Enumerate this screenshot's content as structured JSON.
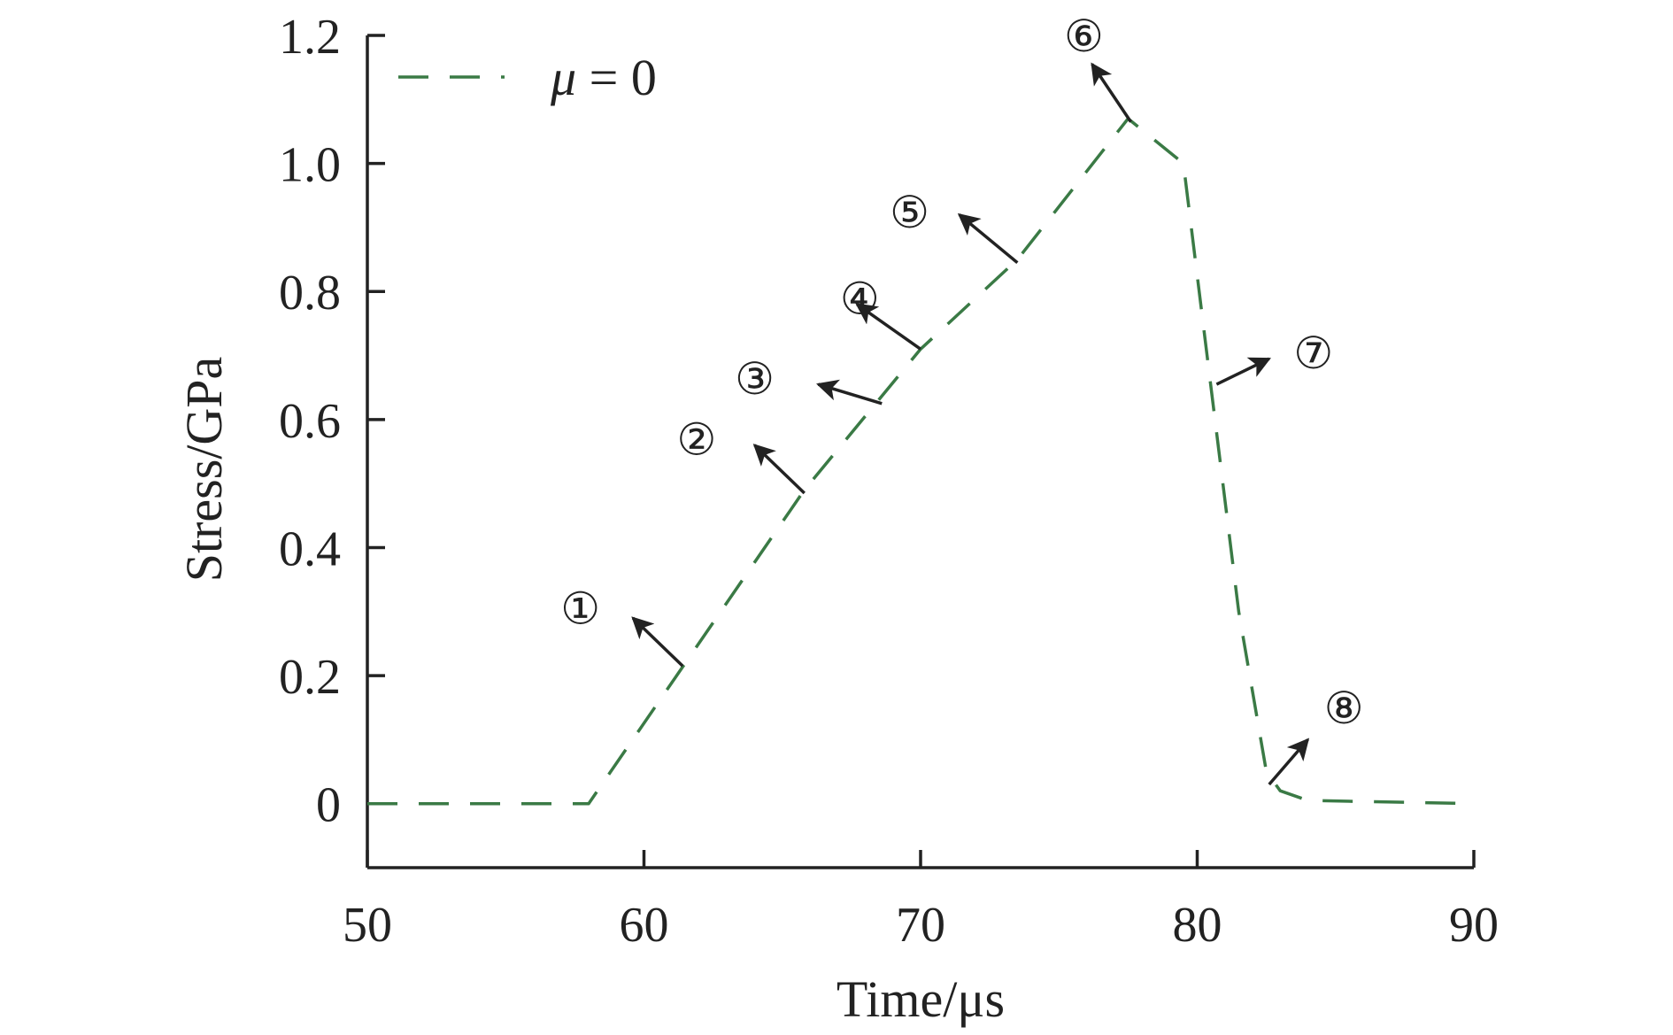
{
  "chart_data": {
    "type": "line",
    "title": "",
    "xlabel": "Time/μs",
    "ylabel": "Stress/GPa",
    "xlim": [
      50,
      90
    ],
    "ylim": [
      -0.1,
      1.2
    ],
    "xticks": [
      50,
      60,
      70,
      80,
      90
    ],
    "xtick_labels": [
      "50",
      "60",
      "70",
      "80",
      "90"
    ],
    "yticks": [
      0,
      0.2,
      0.4,
      0.6,
      0.8,
      1.0,
      1.2
    ],
    "ytick_labels": [
      "0",
      "0.2",
      "0.4",
      "0.6",
      "0.8",
      "1.0",
      "1.2"
    ],
    "grid": false,
    "legend_position": "top-left",
    "series": [
      {
        "name_prefix": "μ",
        "name_suffix": " = 0",
        "color": "#3a7a45",
        "line_style": "dashed",
        "x": [
          50,
          58,
          61.5,
          65.8,
          70,
          73.5,
          77.5,
          79.5,
          80.5,
          81.5,
          82.5,
          83,
          84,
          90
        ],
        "y": [
          0,
          0,
          0.22,
          0.49,
          0.71,
          0.85,
          1.07,
          1.0,
          0.65,
          0.3,
          0.05,
          0.02,
          0.005,
          0
        ]
      }
    ],
    "annotations": [
      {
        "label": "①",
        "text_x": 57.7,
        "text_y": 0.306,
        "tail_x": 61.4,
        "tail_y": 0.215,
        "head_x": 59.6,
        "head_y": 0.29
      },
      {
        "label": "②",
        "text_x": 61.9,
        "text_y": 0.57,
        "tail_x": 65.8,
        "tail_y": 0.485,
        "head_x": 64.0,
        "head_y": 0.56
      },
      {
        "label": "③",
        "text_x": 64.0,
        "text_y": 0.665,
        "tail_x": 68.6,
        "tail_y": 0.625,
        "head_x": 66.3,
        "head_y": 0.655
      },
      {
        "label": "④",
        "text_x": 67.8,
        "text_y": 0.79,
        "tail_x": 70.0,
        "tail_y": 0.71,
        "head_x": 67.7,
        "head_y": 0.78
      },
      {
        "label": "⑤",
        "text_x": 69.6,
        "text_y": 0.925,
        "tail_x": 73.5,
        "tail_y": 0.845,
        "head_x": 71.4,
        "head_y": 0.92
      },
      {
        "label": "⑥",
        "text_x": 75.9,
        "text_y": 1.2,
        "tail_x": 77.6,
        "tail_y": 1.065,
        "head_x": 76.2,
        "head_y": 1.155
      },
      {
        "label": "⑦",
        "text_x": 84.2,
        "text_y": 0.705,
        "tail_x": 80.7,
        "tail_y": 0.655,
        "head_x": 82.6,
        "head_y": 0.695
      },
      {
        "label": "⑧",
        "text_x": 85.3,
        "text_y": 0.15,
        "tail_x": 82.6,
        "tail_y": 0.03,
        "head_x": 84.0,
        "head_y": 0.1
      }
    ]
  }
}
